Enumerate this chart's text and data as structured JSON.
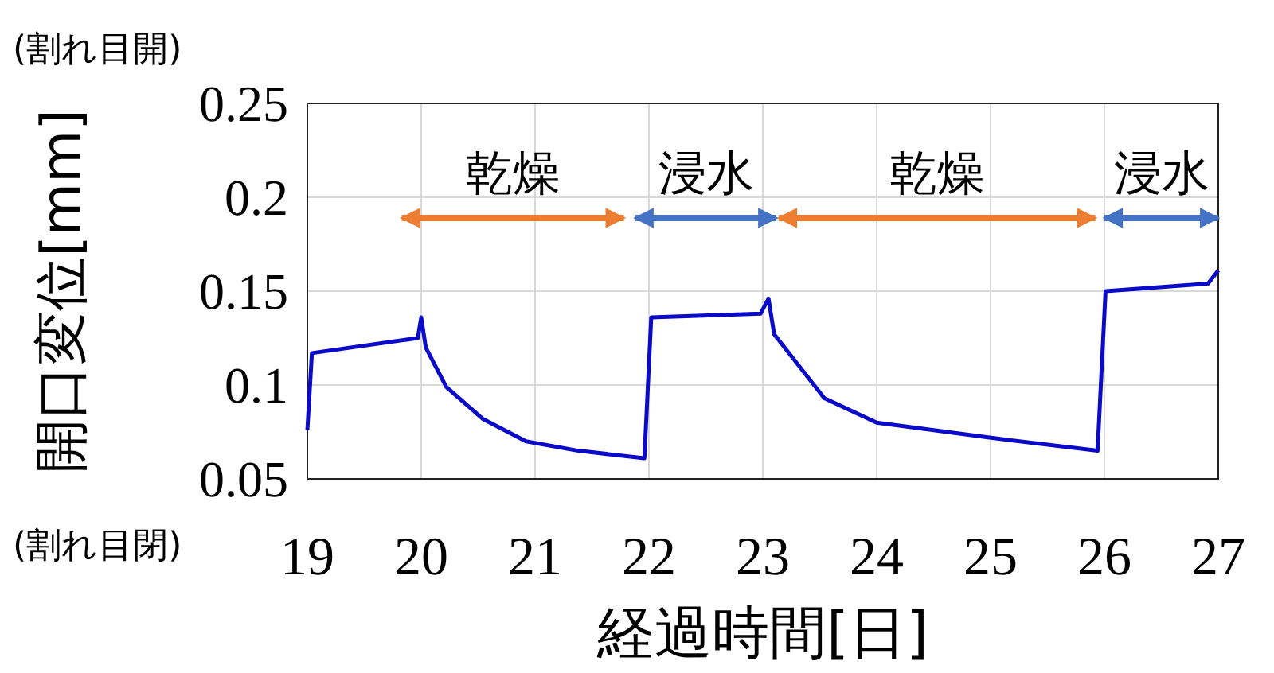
{
  "chart_data": {
    "type": "line",
    "xlabel": "経過時間[日]",
    "ylabel": "開口変位[mm]",
    "annotations": [
      "(割れ目開)",
      "(割れ目閉)",
      "乾燥",
      "浸水",
      "乾燥",
      "浸水"
    ],
    "x": [
      19.0,
      19.04,
      19.97,
      20.0,
      20.04,
      20.22,
      20.54,
      20.92,
      21.38,
      21.96,
      22.02,
      22.98,
      23.05,
      23.1,
      23.54,
      24.0,
      24.99,
      25.94,
      26.01,
      26.91,
      27.0
    ],
    "series": [
      {
        "color": "#0a0ac8",
        "values": [
          0.076,
          0.117,
          0.125,
          0.136,
          0.12,
          0.099,
          0.082,
          0.07,
          0.065,
          0.061,
          0.136,
          0.138,
          0.146,
          0.127,
          0.093,
          0.08,
          0.072,
          0.065,
          0.15,
          0.154,
          0.161
        ]
      },
      {
        "color": "#ed7d31",
        "x": [
          19.83,
          21.78
        ],
        "values": [
          0.189,
          0.189
        ]
      },
      {
        "color": "#4472c4",
        "x": [
          21.88,
          23.12
        ],
        "values": [
          0.189,
          0.189
        ]
      },
      {
        "color": "#ed7d31",
        "x": [
          23.14,
          25.92
        ],
        "values": [
          0.189,
          0.189
        ]
      },
      {
        "color": "#4472c4",
        "x": [
          26.0,
          27.0
        ],
        "values": [
          0.189,
          0.189
        ]
      }
    ],
    "xlim": [
      19,
      27
    ],
    "xticks": [
      19,
      20,
      21,
      22,
      23,
      24,
      25,
      26,
      27
    ],
    "ylim": [
      0.05,
      0.25
    ],
    "yticks": [
      0.05,
      0.1,
      0.15,
      0.2,
      0.25
    ],
    "grid": true
  }
}
